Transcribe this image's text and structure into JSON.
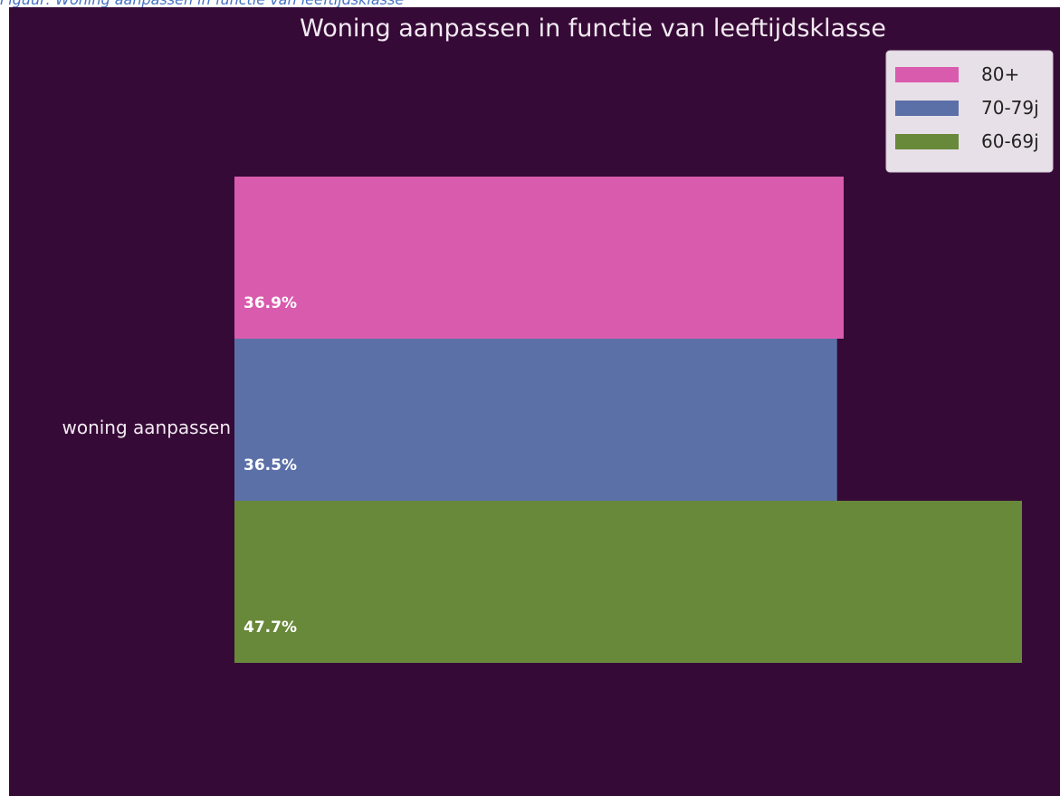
{
  "caption": "Figuur: Woning aanpassen in functie van leeftijdsklasse",
  "chart_data": {
    "type": "bar",
    "orientation": "horizontal",
    "title": "Woning aanpassen in functie van leeftijdsklasse",
    "categories": [
      "woning aanpassen"
    ],
    "series": [
      {
        "name": "80+",
        "values": [
          36.9
        ],
        "label": "36.9%",
        "color": "#d95bad"
      },
      {
        "name": "70-79j",
        "values": [
          36.5
        ],
        "label": "36.5%",
        "color": "#5c70a8"
      },
      {
        "name": "60-69j",
        "values": [
          47.7
        ],
        "label": "47.7%",
        "color": "#68883a"
      }
    ],
    "xlabel": "",
    "ylabel": "",
    "xlim": [
      0,
      47.7
    ],
    "grid": false,
    "legend": "top-right",
    "background": "#360a36",
    "legend_background": "#e8e0e8"
  }
}
